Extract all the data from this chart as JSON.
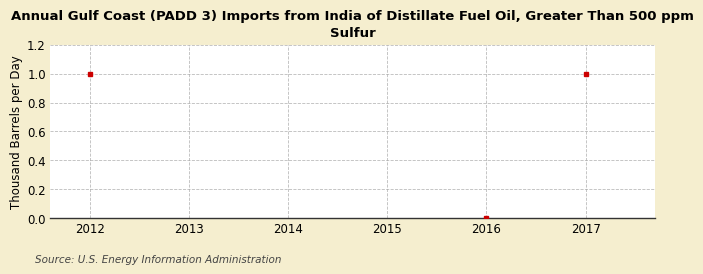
{
  "title": "Annual Gulf Coast (PADD 3) Imports from India of Distillate Fuel Oil, Greater Than 500 ppm\nSulfur",
  "ylabel": "Thousand Barrels per Day",
  "source": "Source: U.S. Energy Information Administration",
  "xlim": [
    2011.6,
    2017.7
  ],
  "ylim": [
    0.0,
    1.2
  ],
  "yticks": [
    0.0,
    0.2,
    0.4,
    0.6,
    0.8,
    1.0,
    1.2
  ],
  "xticks": [
    2012,
    2013,
    2014,
    2015,
    2016,
    2017
  ],
  "data_x": [
    2012,
    2016,
    2017
  ],
  "data_y": [
    1.0,
    0.0,
    1.0
  ],
  "background_color": "#f5eecf",
  "plot_bg_color": "#ffffff",
  "marker_color": "#cc0000",
  "grid_color": "#aaaaaa",
  "title_fontsize": 9.5,
  "label_fontsize": 8.5,
  "tick_fontsize": 8.5,
  "source_fontsize": 7.5
}
